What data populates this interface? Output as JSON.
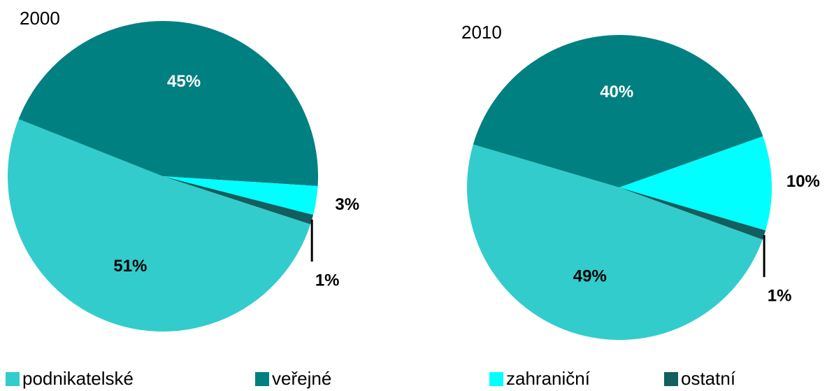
{
  "chart_data": [
    {
      "type": "pie",
      "title": "2000",
      "categories": [
        "podnikatelské",
        "veřejné",
        "zahraniční",
        "ostatní"
      ],
      "values": [
        51,
        45,
        3,
        1
      ],
      "value_labels": [
        "51%",
        "45%",
        "3%",
        "1%"
      ],
      "colors": [
        "#33cccc",
        "#008080",
        "#00ffff",
        "#135e5e"
      ],
      "startangle": 108
    },
    {
      "type": "pie",
      "title": "2010",
      "categories": [
        "podnikatelské",
        "veřejné",
        "zahraniční",
        "ostatní"
      ],
      "values": [
        49,
        40,
        10,
        1
      ],
      "value_labels": [
        "49%",
        "40%",
        "10%",
        "1%"
      ],
      "colors": [
        "#33cccc",
        "#008080",
        "#00ffff",
        "#135e5e"
      ],
      "startangle": 110
    }
  ]
}
